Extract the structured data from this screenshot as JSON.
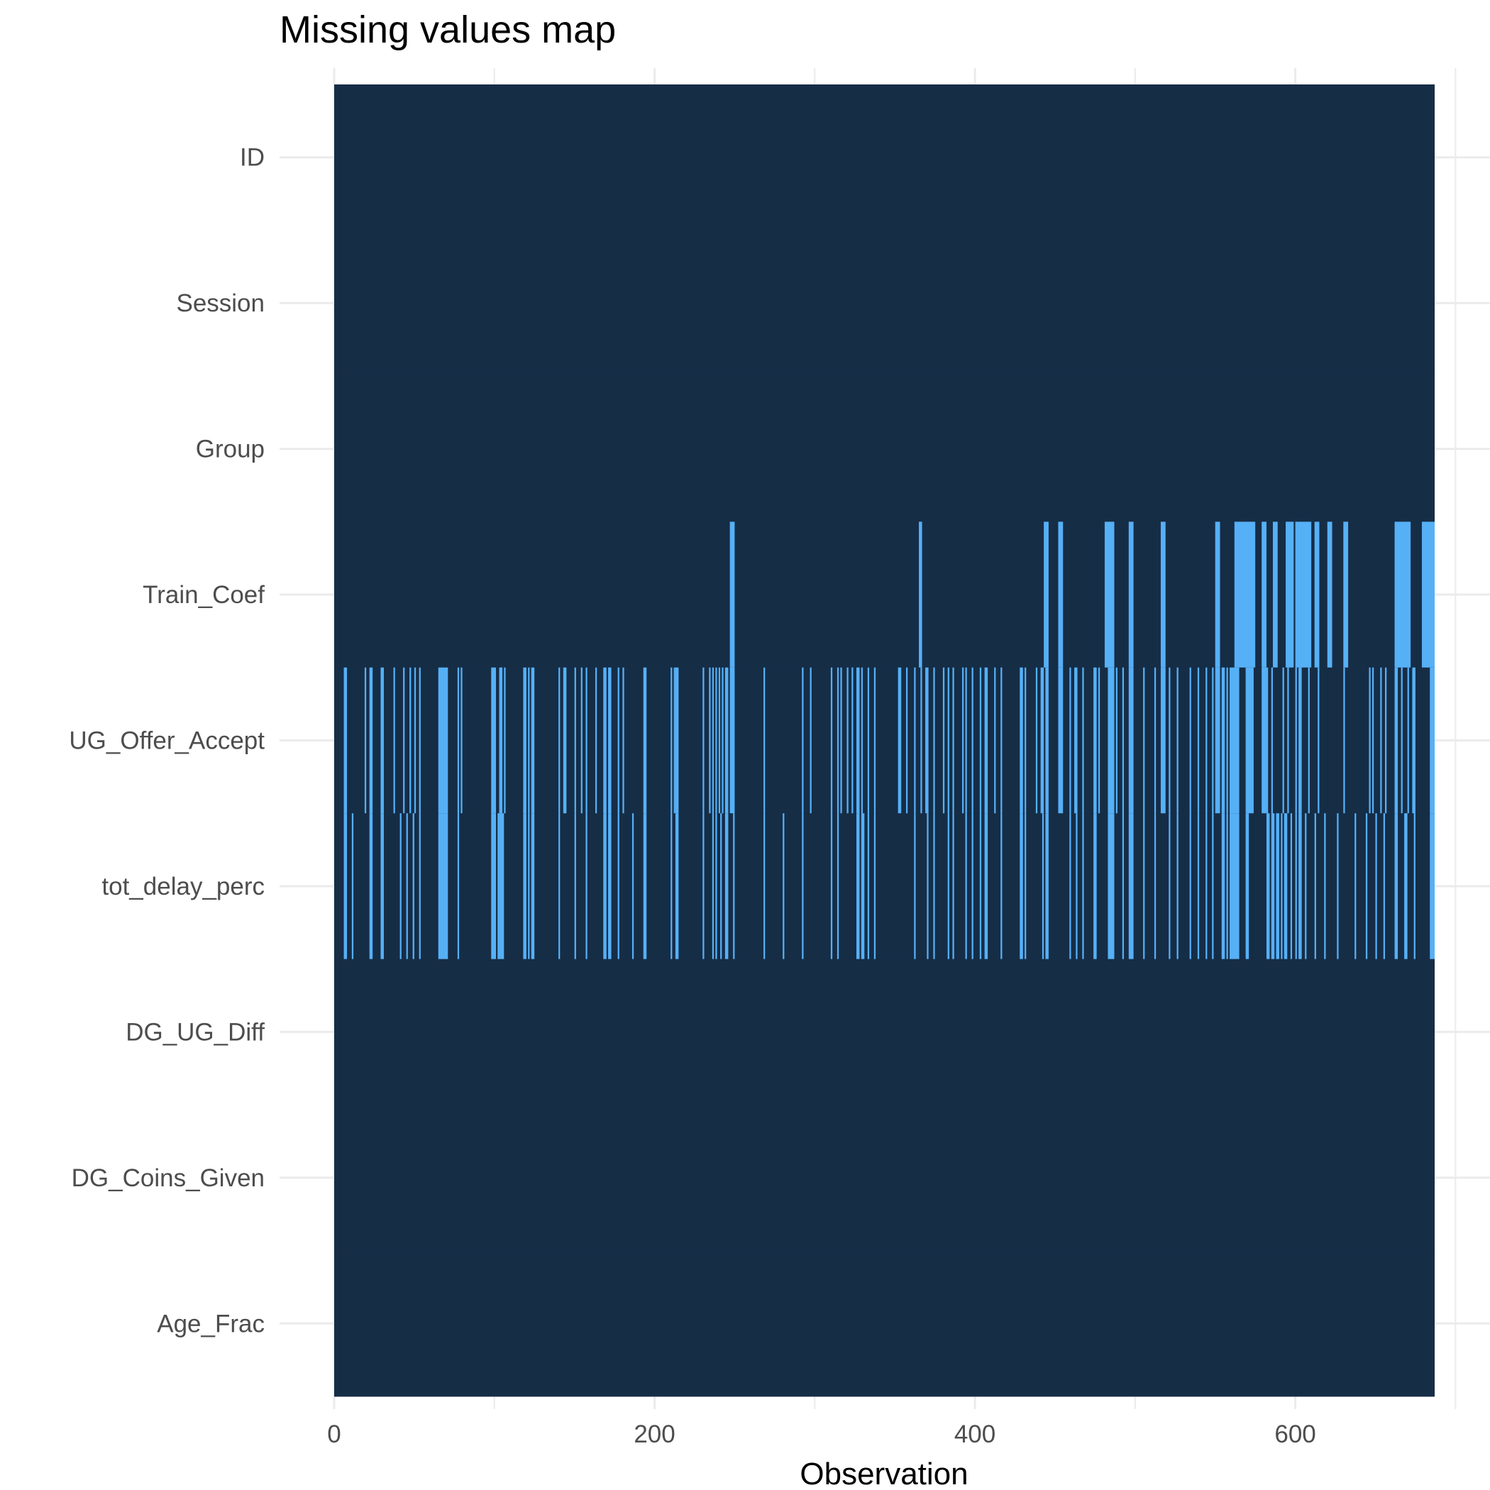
{
  "chart_data": {
    "type": "heatmap",
    "title": "Missing values map",
    "xlabel": "Observation",
    "ylabel": "",
    "xlim": [
      0,
      687
    ],
    "x_ticks": [
      0,
      200,
      400,
      600
    ],
    "x_tick_labels": [
      "0",
      "200",
      "400",
      "600"
    ],
    "variables": [
      "ID",
      "Session",
      "Group",
      "Train_Coef",
      "UG_Offer_Accept",
      "tot_delay_perc",
      "DG_UG_Diff",
      "DG_Coins_Given",
      "Age_Frac"
    ],
    "n_observations": 687,
    "grid": true,
    "legend": "none",
    "colors": {
      "present": "#162d46",
      "missing": "#56b0f6"
    },
    "missing_intervals": {
      "ID": [],
      "Session": [],
      "Group": [],
      "Train_Coef": [
        [
          247,
          250
        ],
        [
          365,
          367
        ],
        [
          443,
          446
        ],
        [
          452,
          455
        ],
        [
          481,
          487
        ],
        [
          496,
          499
        ],
        [
          516,
          519
        ],
        [
          550,
          553
        ],
        [
          562,
          575
        ],
        [
          579,
          582
        ],
        [
          586,
          589
        ],
        [
          594,
          599
        ],
        [
          600,
          610
        ],
        [
          612,
          615
        ],
        [
          620,
          623
        ],
        [
          630,
          633
        ],
        [
          662,
          672
        ],
        [
          679,
          687
        ]
      ],
      "UG_Offer_Accept": [
        [
          6,
          8
        ],
        [
          19,
          20
        ],
        [
          22,
          24
        ],
        [
          29,
          31
        ],
        [
          37,
          38
        ],
        [
          43,
          44
        ],
        [
          47,
          48
        ],
        [
          50,
          51
        ],
        [
          53,
          54
        ],
        [
          65,
          68
        ],
        [
          68,
          71
        ],
        [
          77,
          78
        ],
        [
          79,
          80
        ],
        [
          98,
          101
        ],
        [
          103,
          105
        ],
        [
          106,
          107
        ],
        [
          118,
          120
        ],
        [
          121,
          122
        ],
        [
          123,
          125
        ],
        [
          140,
          141
        ],
        [
          143,
          145
        ],
        [
          150,
          151
        ],
        [
          154,
          155
        ],
        [
          157,
          158
        ],
        [
          163,
          164
        ],
        [
          168,
          170
        ],
        [
          171,
          173
        ],
        [
          177,
          178
        ],
        [
          180,
          181
        ],
        [
          193,
          195
        ],
        [
          210,
          211
        ],
        [
          212,
          213
        ],
        [
          213,
          215
        ],
        [
          230,
          231
        ],
        [
          234,
          235
        ],
        [
          236,
          237
        ],
        [
          238,
          239
        ],
        [
          240,
          241
        ],
        [
          242,
          243
        ],
        [
          244,
          246
        ],
        [
          247,
          250
        ],
        [
          268,
          269
        ],
        [
          292,
          293
        ],
        [
          297,
          298
        ],
        [
          310,
          311
        ],
        [
          314,
          315
        ],
        [
          316,
          317
        ],
        [
          320,
          321
        ],
        [
          323,
          324
        ],
        [
          326,
          328
        ],
        [
          329,
          330
        ],
        [
          333,
          334
        ],
        [
          337,
          338
        ],
        [
          352,
          354
        ],
        [
          357,
          358
        ],
        [
          362,
          363
        ],
        [
          366,
          367
        ],
        [
          369,
          371
        ],
        [
          374,
          375
        ],
        [
          380,
          381
        ],
        [
          383,
          384
        ],
        [
          386,
          387
        ],
        [
          392,
          393
        ],
        [
          394,
          395
        ],
        [
          398,
          399
        ],
        [
          403,
          404
        ],
        [
          406,
          408
        ],
        [
          412,
          413
        ],
        [
          416,
          417
        ],
        [
          428,
          430
        ],
        [
          431,
          432
        ],
        [
          438,
          439
        ],
        [
          441,
          443
        ],
        [
          444,
          446
        ],
        [
          452,
          455
        ],
        [
          459,
          460
        ],
        [
          462,
          464
        ],
        [
          467,
          468
        ],
        [
          474,
          476
        ],
        [
          477,
          478
        ],
        [
          483,
          487
        ],
        [
          488,
          489
        ],
        [
          492,
          493
        ],
        [
          496,
          499
        ],
        [
          505,
          506
        ],
        [
          512,
          513
        ],
        [
          516,
          519
        ],
        [
          521,
          522
        ],
        [
          526,
          527
        ],
        [
          534,
          535
        ],
        [
          539,
          540
        ],
        [
          544,
          545
        ],
        [
          548,
          549
        ],
        [
          550,
          553
        ],
        [
          554,
          556
        ],
        [
          557,
          558
        ],
        [
          559,
          565
        ],
        [
          569,
          574
        ],
        [
          579,
          582
        ],
        [
          582,
          583
        ],
        [
          585,
          586
        ],
        [
          592,
          593
        ],
        [
          595,
          596
        ],
        [
          600,
          601
        ],
        [
          602,
          604
        ],
        [
          608,
          609
        ],
        [
          614,
          615
        ],
        [
          630,
          631
        ],
        [
          646,
          647
        ],
        [
          648,
          649
        ],
        [
          653,
          654
        ],
        [
          656,
          657
        ],
        [
          662,
          664
        ],
        [
          666,
          667
        ],
        [
          670,
          671
        ],
        [
          673,
          675
        ],
        [
          684,
          687
        ]
      ],
      "tot_delay_perc": [
        [
          6,
          8
        ],
        [
          11,
          12
        ],
        [
          22,
          24
        ],
        [
          29,
          31
        ],
        [
          41,
          42
        ],
        [
          45,
          46
        ],
        [
          49,
          50
        ],
        [
          53,
          54
        ],
        [
          65,
          68
        ],
        [
          68,
          71
        ],
        [
          77,
          78
        ],
        [
          98,
          101
        ],
        [
          102,
          103
        ],
        [
          103,
          106
        ],
        [
          118,
          120
        ],
        [
          121,
          122
        ],
        [
          123,
          125
        ],
        [
          140,
          141
        ],
        [
          150,
          151
        ],
        [
          157,
          158
        ],
        [
          168,
          170
        ],
        [
          171,
          173
        ],
        [
          177,
          178
        ],
        [
          186,
          187
        ],
        [
          193,
          195
        ],
        [
          210,
          211
        ],
        [
          213,
          215
        ],
        [
          230,
          231
        ],
        [
          236,
          237
        ],
        [
          238,
          239
        ],
        [
          241,
          242
        ],
        [
          244,
          246
        ],
        [
          249,
          250
        ],
        [
          268,
          269
        ],
        [
          280,
          281
        ],
        [
          292,
          293
        ],
        [
          310,
          311
        ],
        [
          314,
          315
        ],
        [
          326,
          328
        ],
        [
          329,
          331
        ],
        [
          333,
          334
        ],
        [
          337,
          338
        ],
        [
          362,
          363
        ],
        [
          370,
          371
        ],
        [
          374,
          375
        ],
        [
          383,
          384
        ],
        [
          386,
          387
        ],
        [
          394,
          395
        ],
        [
          398,
          399
        ],
        [
          403,
          404
        ],
        [
          406,
          408
        ],
        [
          416,
          417
        ],
        [
          428,
          430
        ],
        [
          431,
          432
        ],
        [
          442,
          443
        ],
        [
          444,
          446
        ],
        [
          459,
          460
        ],
        [
          463,
          464
        ],
        [
          467,
          468
        ],
        [
          474,
          476
        ],
        [
          483,
          487
        ],
        [
          492,
          493
        ],
        [
          496,
          499
        ],
        [
          505,
          506
        ],
        [
          512,
          513
        ],
        [
          521,
          522
        ],
        [
          526,
          527
        ],
        [
          534,
          535
        ],
        [
          539,
          540
        ],
        [
          544,
          545
        ],
        [
          548,
          549
        ],
        [
          554,
          556
        ],
        [
          557,
          558
        ],
        [
          559,
          565
        ],
        [
          569,
          571
        ],
        [
          582,
          584
        ],
        [
          585,
          587
        ],
        [
          588,
          590
        ],
        [
          591,
          592
        ],
        [
          593,
          595
        ],
        [
          597,
          598
        ],
        [
          600,
          601
        ],
        [
          602,
          604
        ],
        [
          606,
          607
        ],
        [
          612,
          613
        ],
        [
          618,
          619
        ],
        [
          626,
          627
        ],
        [
          637,
          638
        ],
        [
          644,
          645
        ],
        [
          650,
          651
        ],
        [
          655,
          656
        ],
        [
          662,
          664
        ],
        [
          668,
          670
        ],
        [
          674,
          675
        ],
        [
          684,
          687
        ]
      ]
    }
  }
}
